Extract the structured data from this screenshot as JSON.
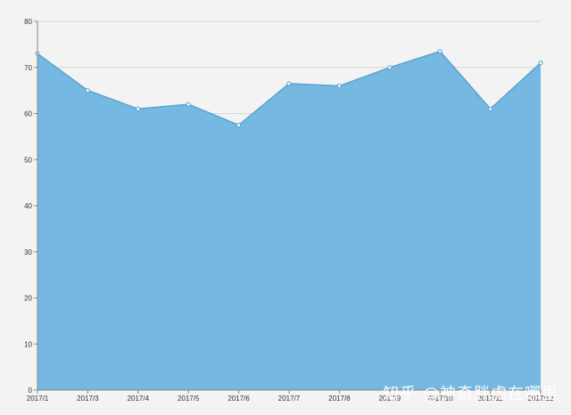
{
  "chart_data": {
    "type": "area",
    "categories": [
      "2017/1",
      "2017/3",
      "2017/4",
      "2017/5",
      "2017/6",
      "2017/7",
      "2017/8",
      "2017/9",
      "2017/10",
      "2017/11",
      "2017/12"
    ],
    "values": [
      73,
      65,
      61,
      62,
      57.5,
      66.5,
      66,
      70,
      73.5,
      61,
      71
    ],
    "ylim": [
      0,
      80
    ],
    "yticks": [
      0,
      10,
      20,
      30,
      40,
      50,
      60,
      70,
      80
    ],
    "grid": true,
    "colors": {
      "area": "#75b8e1",
      "line": "#5aa3d0",
      "point": "#ffffff",
      "grid": "#d8d8d8",
      "axis": "#888888"
    }
  },
  "watermark": "知乎 @神奇胖虎在哪里"
}
